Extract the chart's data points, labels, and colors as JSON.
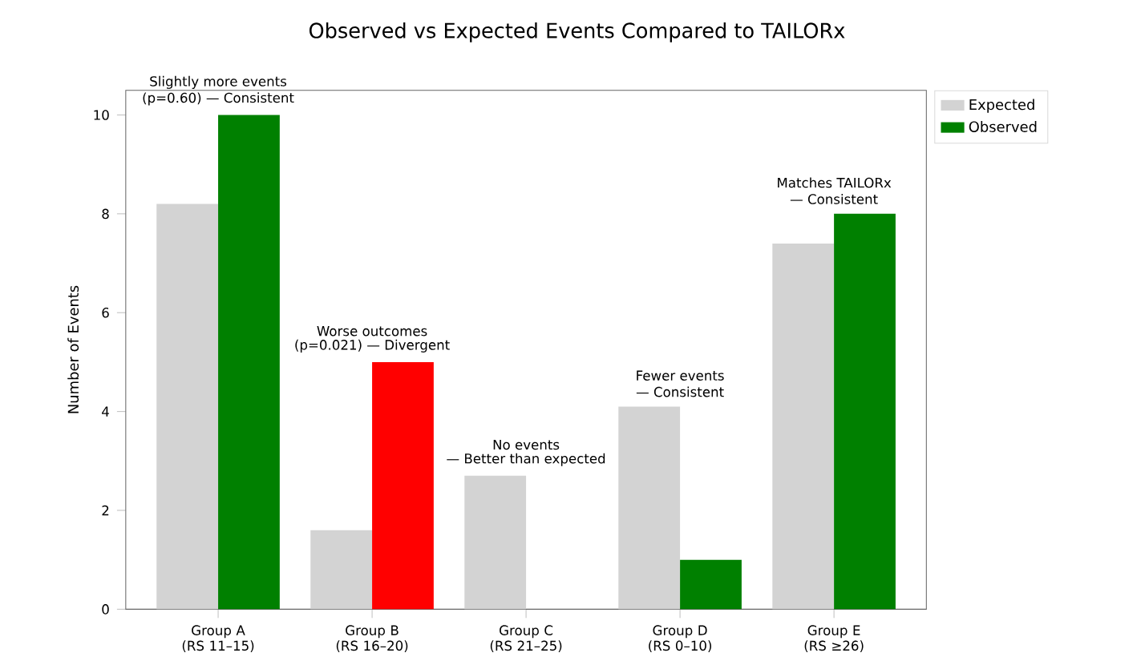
{
  "chart_data": {
    "type": "bar",
    "title": "Observed vs Expected Events Compared to TAILORx",
    "ylabel": "Number of Events",
    "categories": [
      "Group A (RS 11–15)",
      "Group B (RS 16–20)",
      "Group C (RS 21–25)",
      "Group D (RS 0–10)",
      "Group E (RS ≥26)"
    ],
    "series": [
      {
        "name": "Expected",
        "color": "#d3d3d3",
        "values": [
          8.2,
          1.6,
          2.7,
          4.1,
          7.4
        ]
      },
      {
        "name": "Observed",
        "color": "#008000",
        "colors": [
          "#008000",
          "#ff0000",
          "#008000",
          "#008000",
          "#008000"
        ],
        "values": [
          10,
          5,
          0,
          1,
          8
        ]
      }
    ],
    "annotations": [
      "Slightly more events",
      "(p=0.60) — Consistent",
      "Worse outcomes",
      "(p=0.021) — Divergent",
      "No events",
      "— Better than expected",
      "Fewer events",
      "— Consistent",
      "Matches TAILORx",
      "— Consistent"
    ],
    "ylim": [
      0,
      10.5
    ],
    "yticks": [
      0,
      2,
      4,
      6,
      8,
      10
    ],
    "grid": false,
    "legend": "top right"
  }
}
